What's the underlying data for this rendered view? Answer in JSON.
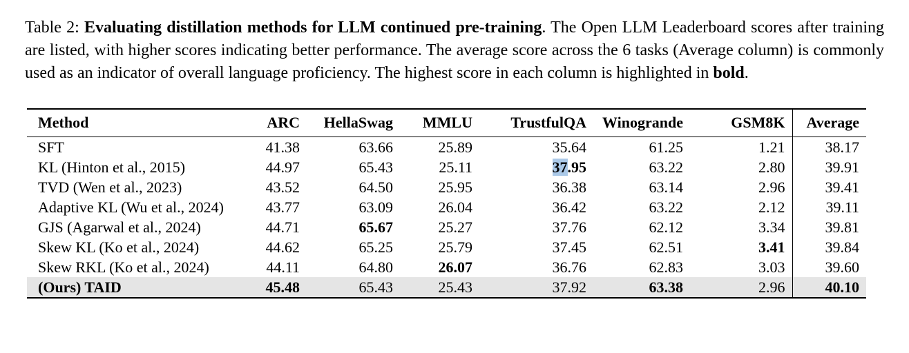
{
  "caption": {
    "segments": [
      {
        "text": "Table 2: ",
        "bold": false
      },
      {
        "text": "Evaluating distillation methods for LLM continued pre-training",
        "bold": true
      },
      {
        "text": ". The Open LLM Leaderboard scores after training are listed, with higher scores indicating better performance. The average score across the 6 tasks (Average column) is commonly used as an indicator of overall language proficiency. The highest score in each column is highlighted in ",
        "bold": false
      },
      {
        "text": "bold",
        "bold": true
      },
      {
        "text": ".",
        "bold": false
      }
    ]
  },
  "table": {
    "columns": [
      "Method",
      "ARC",
      "HellaSwag",
      "MMLU",
      "TrustfulQA",
      "Winogrande",
      "GSM8K",
      "Average"
    ],
    "rows": [
      {
        "method": "SFT",
        "method_bold": false,
        "highlight": false,
        "values": [
          "41.38",
          "63.66",
          "25.89",
          "35.64",
          "61.25",
          "1.21",
          "38.17"
        ],
        "bold_indices": []
      },
      {
        "method": "KL (Hinton et al., 2015)",
        "method_bold": false,
        "highlight": false,
        "values": [
          "44.97",
          "65.43",
          "25.11",
          "37.95",
          "63.22",
          "2.80",
          "39.91"
        ],
        "bold_indices": [
          3
        ]
      },
      {
        "method": "TVD (Wen et al., 2023)",
        "method_bold": false,
        "highlight": false,
        "values": [
          "43.52",
          "64.50",
          "25.95",
          "36.38",
          "63.14",
          "2.96",
          "39.41"
        ],
        "bold_indices": []
      },
      {
        "method": "Adaptive KL (Wu et al., 2024)",
        "method_bold": false,
        "highlight": false,
        "values": [
          "43.77",
          "63.09",
          "26.04",
          "36.42",
          "63.22",
          "2.12",
          "39.11"
        ],
        "bold_indices": []
      },
      {
        "method": "GJS (Agarwal et al., 2024)",
        "method_bold": false,
        "highlight": false,
        "values": [
          "44.71",
          "65.67",
          "25.27",
          "37.76",
          "62.12",
          "3.34",
          "39.81"
        ],
        "bold_indices": [
          1
        ]
      },
      {
        "method": "Skew KL (Ko et al., 2024)",
        "method_bold": false,
        "highlight": false,
        "values": [
          "44.62",
          "65.25",
          "25.79",
          "37.45",
          "62.51",
          "3.41",
          "39.84"
        ],
        "bold_indices": [
          5
        ]
      },
      {
        "method": "Skew RKL (Ko et al., 2024)",
        "method_bold": false,
        "highlight": false,
        "values": [
          "44.11",
          "64.80",
          "26.07",
          "36.76",
          "62.83",
          "3.03",
          "39.60"
        ],
        "bold_indices": [
          2
        ]
      },
      {
        "method": "(Ours) TAID",
        "method_bold": true,
        "highlight": true,
        "values": [
          "45.48",
          "65.43",
          "25.43",
          "37.92",
          "63.38",
          "2.96",
          "40.10"
        ],
        "bold_indices": [
          0,
          4,
          6
        ]
      }
    ],
    "selection": {
      "row": 1,
      "col": 3,
      "selected": "37",
      "rest": ".95"
    },
    "colors": {
      "highlight_row": "#e5e5e5",
      "text_selection": "#abc9e8"
    }
  }
}
